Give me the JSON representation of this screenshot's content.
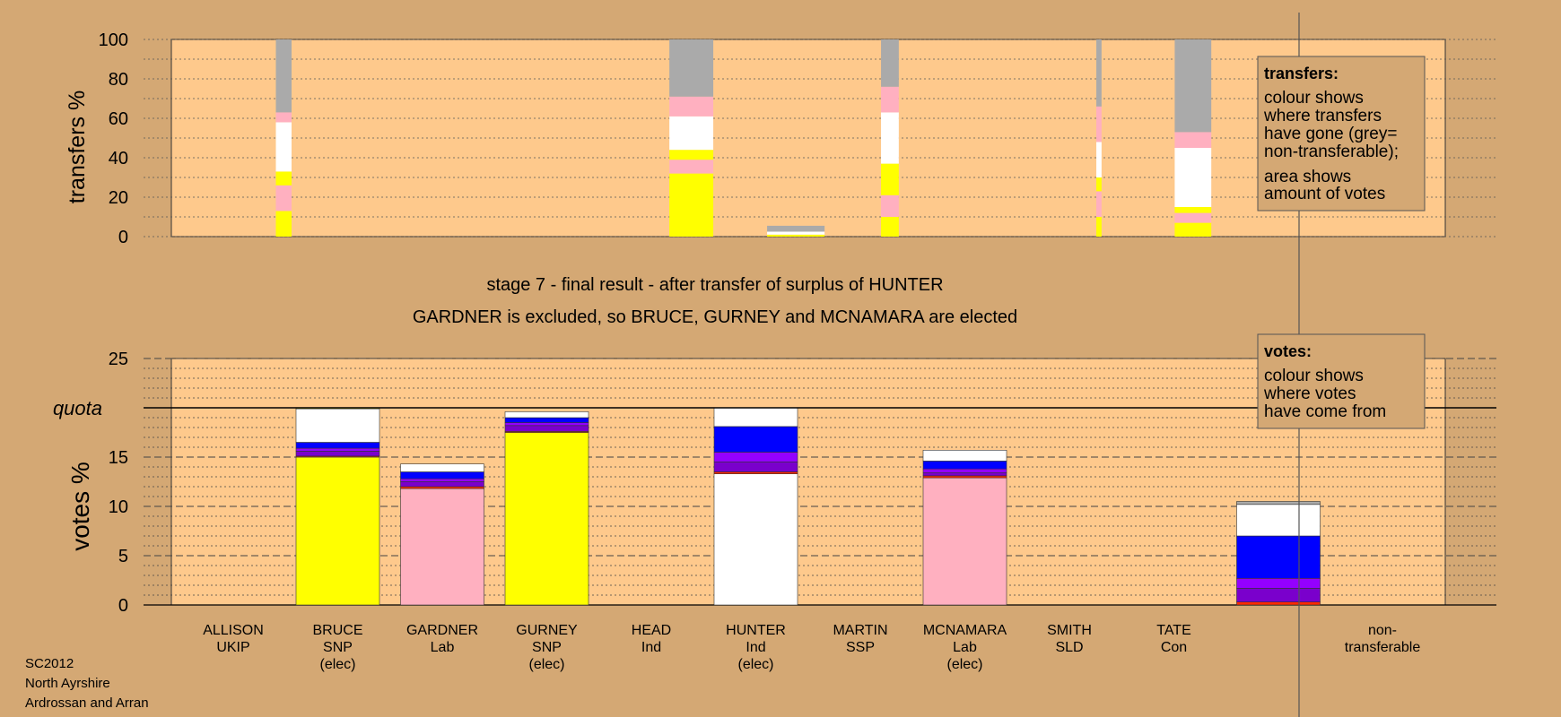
{
  "colors": {
    "background": "#d4a874",
    "plot_bg": "#fec98c",
    "SNP": "#ffff00",
    "Lab": "#ffb0c0",
    "Ind": "#ffffff",
    "Con": "#0000ff",
    "SLD": "#9400ff",
    "UKIP": "#7a00cc",
    "SSP": "#ff2a00",
    "nontransferable": "#aaaaaa"
  },
  "header": {
    "stage_title": "stage 7 - final result - after transfer of surplus of HUNTER",
    "stage_subtitle": "GARDNER is excluded, so BRUCE, GURNEY and MCNAMARA are elected"
  },
  "footer": {
    "line1": "SC2012",
    "line2": "North Ayrshire",
    "line3": "Ardrossan and Arran"
  },
  "legend_transfers": {
    "title": "transfers:",
    "lines": [
      "colour shows",
      "where transfers",
      "have gone (grey=",
      "non-transferable);"
    ],
    "lines2": [
      "area shows",
      "amount of votes"
    ]
  },
  "legend_votes": {
    "title": "votes:",
    "lines": [
      "colour shows",
      "where votes",
      "have come from"
    ]
  },
  "chart_data": [
    {
      "type": "bar",
      "name": "transfers",
      "ylabel": "transfers %",
      "ylim": [
        0,
        100
      ],
      "yticks": [
        0,
        20,
        40,
        60,
        80,
        100
      ],
      "bars": [
        {
          "pos": 0.5,
          "width": 0.15,
          "segments": [
            [
              "SNP",
              13
            ],
            [
              "Lab",
              13
            ],
            [
              "SNP",
              7
            ],
            [
              "Ind",
              25
            ],
            [
              "Lab",
              5
            ],
            [
              "nontransferable",
              37
            ]
          ]
        },
        {
          "pos": 4.4,
          "width": 0.42,
          "segments": [
            [
              "SNP",
              32
            ],
            [
              "Lab",
              7
            ],
            [
              "SNP",
              5
            ],
            [
              "Ind",
              17
            ],
            [
              "Lab",
              10
            ],
            [
              "nontransferable",
              29
            ]
          ]
        },
        {
          "pos": 5.4,
          "width": 0.55,
          "segments": [
            [
              "SNP",
              1
            ],
            [
              "Ind",
              1.5
            ],
            [
              "nontransferable",
              3
            ]
          ]
        },
        {
          "pos": 6.3,
          "width": 0.17,
          "segments": [
            [
              "SNP",
              10
            ],
            [
              "Lab",
              11
            ],
            [
              "SNP",
              16
            ],
            [
              "Ind",
              26
            ],
            [
              "Lab",
              13
            ],
            [
              "nontransferable",
              24
            ]
          ]
        },
        {
          "pos": 8.3,
          "width": 0.05,
          "segments": [
            [
              "SNP",
              10
            ],
            [
              "Lab",
              13
            ],
            [
              "SNP",
              7
            ],
            [
              "Ind",
              18
            ],
            [
              "Lab",
              18
            ],
            [
              "nontransferable",
              34
            ]
          ]
        },
        {
          "pos": 9.2,
          "width": 0.35,
          "segments": [
            [
              "SNP",
              7
            ],
            [
              "Lab",
              5
            ],
            [
              "SNP",
              3
            ],
            [
              "Ind",
              30
            ],
            [
              "Lab",
              8
            ],
            [
              "nontransferable",
              47
            ]
          ]
        }
      ]
    },
    {
      "type": "bar",
      "name": "votes",
      "ylabel": "votes %",
      "ylim": [
        0,
        25
      ],
      "yticks": [
        0,
        5,
        10,
        15,
        20,
        25
      ],
      "quota": 20,
      "quota_label": "quota",
      "categories": [
        [
          "ALLISON",
          "UKIP",
          ""
        ],
        [
          "BRUCE",
          "SNP",
          "(elec)"
        ],
        [
          "GARDNER",
          "Lab",
          ""
        ],
        [
          "GURNEY",
          "SNP",
          "(elec)"
        ],
        [
          "HEAD",
          "Ind",
          ""
        ],
        [
          "HUNTER",
          "Ind",
          "(elec)"
        ],
        [
          "MARTIN",
          "SSP",
          ""
        ],
        [
          "MCNAMARA",
          "Lab",
          "(elec)"
        ],
        [
          "SMITH",
          "SLD",
          ""
        ],
        [
          "TATE",
          "Con",
          ""
        ],
        [
          "non-",
          "transferable",
          ""
        ]
      ],
      "bars": [
        {
          "index": 1,
          "segments": [
            [
              "SNP",
              15.0
            ],
            [
              "SSP",
              0.1
            ],
            [
              "UKIP",
              0.5
            ],
            [
              "SLD",
              0.3
            ],
            [
              "Con",
              0.6
            ],
            [
              "Ind",
              3.4
            ],
            [
              "SNP",
              0.1
            ]
          ]
        },
        {
          "index": 2,
          "segments": [
            [
              "Lab",
              11.8
            ],
            [
              "SSP",
              0.2
            ],
            [
              "UKIP",
              0.5
            ],
            [
              "SLD",
              0.3
            ],
            [
              "Con",
              0.7
            ],
            [
              "Ind",
              0.8
            ]
          ]
        },
        {
          "index": 3,
          "segments": [
            [
              "SNP",
              17.5
            ],
            [
              "SSP",
              0.1
            ],
            [
              "UKIP",
              0.6
            ],
            [
              "SLD",
              0.3
            ],
            [
              "Con",
              0.5
            ],
            [
              "Ind",
              0.6
            ]
          ]
        },
        {
          "index": 5,
          "segments": [
            [
              "Ind",
              13.3
            ],
            [
              "SSP",
              0.2
            ],
            [
              "UKIP",
              1.0
            ],
            [
              "SLD",
              1.0
            ],
            [
              "Con",
              2.6
            ],
            [
              "Ind",
              1.9
            ]
          ]
        },
        {
          "index": 7,
          "segments": [
            [
              "Lab",
              12.9
            ],
            [
              "SSP",
              0.2
            ],
            [
              "UKIP",
              0.3
            ],
            [
              "SLD",
              0.4
            ],
            [
              "Con",
              0.8
            ],
            [
              "Ind",
              1.1
            ]
          ]
        },
        {
          "index": 10,
          "segments": [
            [
              "SSP",
              0.3
            ],
            [
              "UKIP",
              1.4
            ],
            [
              "SLD",
              1.0
            ],
            [
              "Con",
              4.3
            ],
            [
              "Ind",
              3.2
            ],
            [
              "nontransferable",
              0.3
            ]
          ]
        }
      ]
    }
  ]
}
